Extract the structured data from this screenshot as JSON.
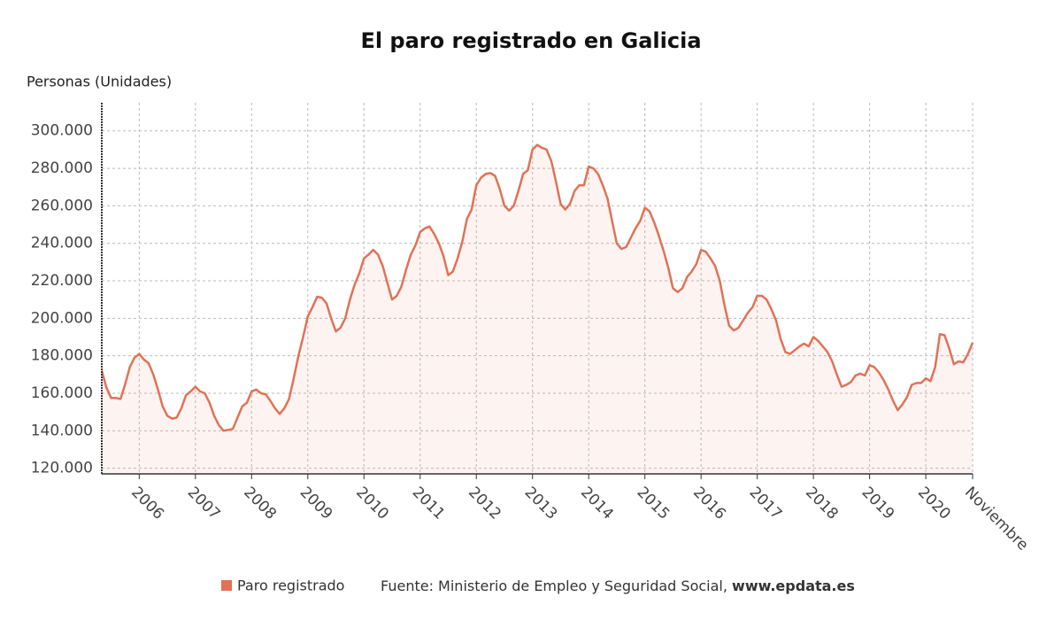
{
  "chart_data": {
    "type": "line",
    "title": "El paro registrado en Galicia",
    "y_label": "Personas (Unidades)",
    "categories": [
      null,
      null,
      null,
      null,
      null,
      null,
      null,
      null,
      "2006",
      null,
      null,
      null,
      null,
      null,
      null,
      null,
      null,
      null,
      null,
      null,
      "2007",
      null,
      null,
      null,
      null,
      null,
      null,
      null,
      null,
      null,
      null,
      null,
      "2008",
      null,
      null,
      null,
      null,
      null,
      null,
      null,
      null,
      null,
      null,
      null,
      "2009",
      null,
      null,
      null,
      null,
      null,
      null,
      null,
      null,
      null,
      null,
      null,
      "2010",
      null,
      null,
      null,
      null,
      null,
      null,
      null,
      null,
      null,
      null,
      null,
      "2011",
      null,
      null,
      null,
      null,
      null,
      null,
      null,
      null,
      null,
      null,
      null,
      "2012",
      null,
      null,
      null,
      null,
      null,
      null,
      null,
      null,
      null,
      null,
      null,
      "2013",
      null,
      null,
      null,
      null,
      null,
      null,
      null,
      null,
      null,
      null,
      null,
      "2014",
      null,
      null,
      null,
      null,
      null,
      null,
      null,
      null,
      null,
      null,
      null,
      "2015",
      null,
      null,
      null,
      null,
      null,
      null,
      null,
      null,
      null,
      null,
      null,
      "2016",
      null,
      null,
      null,
      null,
      null,
      null,
      null,
      null,
      null,
      null,
      null,
      "2017",
      null,
      null,
      null,
      null,
      null,
      null,
      null,
      null,
      null,
      null,
      null,
      "2018",
      null,
      null,
      null,
      null,
      null,
      null,
      null,
      null,
      null,
      null,
      null,
      "2019",
      null,
      null,
      null,
      null,
      null,
      null,
      null,
      null,
      null,
      null,
      null,
      "2020",
      null,
      null,
      null,
      null,
      null,
      null,
      null,
      null,
      null,
      "Noviembre"
    ],
    "series": [
      {
        "name": "Paro registrado",
        "color": "#e07256",
        "values": [
          172000,
          163000,
          157500,
          157500,
          157000,
          165000,
          174000,
          179000,
          181000,
          178000,
          176000,
          170000,
          162000,
          153000,
          148000,
          146500,
          147000,
          152000,
          159000,
          161000,
          163500,
          161000,
          160000,
          155000,
          148000,
          143000,
          140000,
          140500,
          141000,
          147000,
          153000,
          155000,
          161000,
          162000,
          160000,
          159500,
          156000,
          152000,
          149000,
          152000,
          157000,
          168000,
          180000,
          190000,
          201000,
          206000,
          211500,
          211000,
          208000,
          200000,
          193000,
          195000,
          200000,
          210000,
          218000,
          224000,
          232000,
          234000,
          236500,
          234000,
          228000,
          219000,
          210000,
          212000,
          217000,
          226000,
          234000,
          239000,
          246000,
          248000,
          249000,
          245000,
          240000,
          233000,
          223000,
          225000,
          232000,
          241000,
          253000,
          258000,
          271000,
          275000,
          277000,
          277500,
          276000,
          269000,
          260000,
          257500,
          260000,
          268000,
          277000,
          279000,
          290000,
          292500,
          291000,
          290000,
          284000,
          273000,
          261000,
          258000,
          261000,
          268000,
          271000,
          271000,
          281000,
          280000,
          277000,
          271000,
          264000,
          252000,
          240000,
          237000,
          238000,
          243000,
          248000,
          252000,
          259000,
          257000,
          251000,
          244000,
          236000,
          227000,
          216000,
          214000,
          216000,
          222000,
          225000,
          229000,
          236500,
          235500,
          232000,
          228000,
          220000,
          207000,
          196000,
          193500,
          195000,
          199000,
          203000,
          206000,
          212000,
          212000,
          210000,
          205000,
          199000,
          189000,
          182000,
          181000,
          183000,
          185000,
          186500,
          185000,
          190000,
          188000,
          185000,
          182000,
          177000,
          170000,
          163500,
          164500,
          166000,
          169500,
          170500,
          169500,
          175000,
          174000,
          171000,
          167000,
          162000,
          156000,
          151000,
          154000,
          158000,
          164500,
          165500,
          165500,
          168000,
          166500,
          174000,
          191500,
          191000,
          184000,
          175500,
          177000,
          176500,
          181000,
          187000
        ]
      }
    ],
    "ylim": [
      117000,
      315000
    ],
    "yticks": [
      {
        "value": 120000,
        "label": "120.000"
      },
      {
        "value": 140000,
        "label": "140.000"
      },
      {
        "value": 160000,
        "label": "160.000"
      },
      {
        "value": 180000,
        "label": "180.000"
      },
      {
        "value": 200000,
        "label": "200.000"
      },
      {
        "value": 220000,
        "label": "220.000"
      },
      {
        "value": 240000,
        "label": "240.000"
      },
      {
        "value": 260000,
        "label": "260.000"
      },
      {
        "value": 280000,
        "label": "280.000"
      },
      {
        "value": 300000,
        "label": "300.000"
      }
    ],
    "grid": true,
    "source": "Fuente: Ministerio de Empleo y Seguridad Social,",
    "source_site": "www.epdata.es"
  }
}
